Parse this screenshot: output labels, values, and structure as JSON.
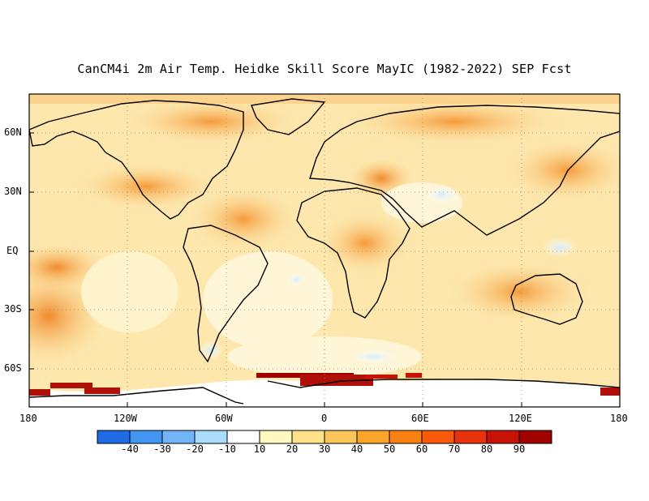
{
  "title": "CanCM4i 2m Air Temp. Heidke Skill Score MayIC (1982-2022) SEP Fcst",
  "lat_labels": [
    "60N",
    "30N",
    "EQ",
    "30S",
    "60S"
  ],
  "lon_labels": [
    "180",
    "120W",
    "60W",
    "0",
    "60E",
    "120E",
    "180"
  ],
  "colorbar": {
    "colors": [
      "#1f6be6",
      "#4296f2",
      "#72b4f6",
      "#a9dcfb",
      "#ffffff",
      "#fff8c0",
      "#fde28a",
      "#fcc55a",
      "#fba42a",
      "#fb8012",
      "#fb5a0a",
      "#e8320a",
      "#c81208",
      "#a00000"
    ],
    "labels": [
      "-40",
      "-30",
      "-20",
      "-10",
      "10",
      "20",
      "30",
      "40",
      "50",
      "60",
      "70",
      "80",
      "90"
    ]
  }
}
